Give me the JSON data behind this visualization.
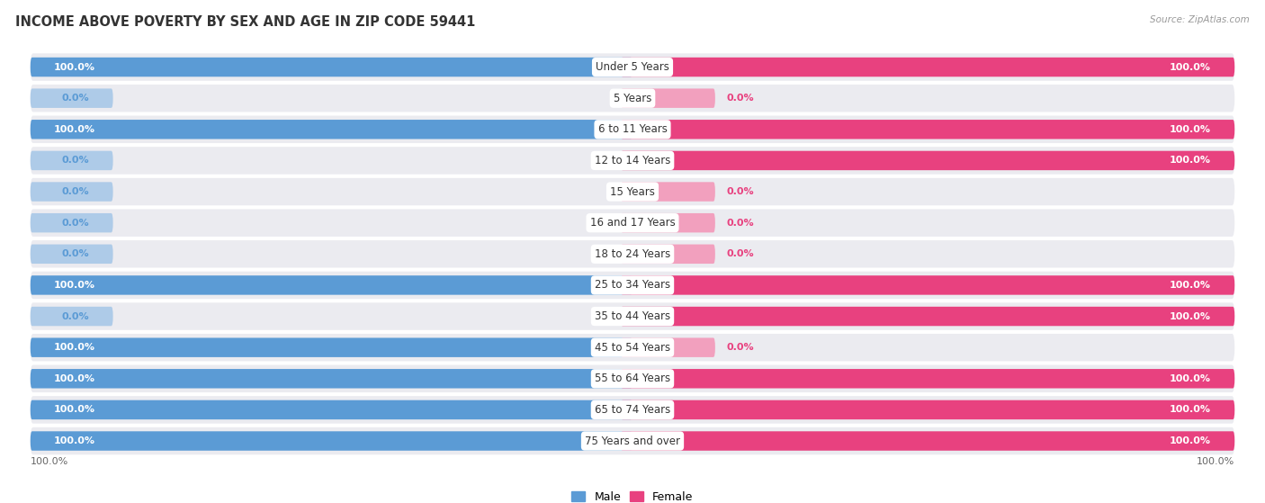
{
  "title": "INCOME ABOVE POVERTY BY SEX AND AGE IN ZIP CODE 59441",
  "source": "Source: ZipAtlas.com",
  "categories": [
    "Under 5 Years",
    "5 Years",
    "6 to 11 Years",
    "12 to 14 Years",
    "15 Years",
    "16 and 17 Years",
    "18 to 24 Years",
    "25 to 34 Years",
    "35 to 44 Years",
    "45 to 54 Years",
    "55 to 64 Years",
    "65 to 74 Years",
    "75 Years and over"
  ],
  "male": [
    100.0,
    0.0,
    100.0,
    0.0,
    0.0,
    0.0,
    0.0,
    100.0,
    0.0,
    100.0,
    100.0,
    100.0,
    100.0
  ],
  "female": [
    100.0,
    0.0,
    100.0,
    100.0,
    0.0,
    0.0,
    0.0,
    100.0,
    100.0,
    0.0,
    100.0,
    100.0,
    100.0
  ],
  "male_color": "#5b9bd5",
  "male_light_color": "#aecbe8",
  "female_color": "#e8417f",
  "female_light_color": "#f2a0be",
  "bg_color": "#ebebf0",
  "title_fontsize": 10.5,
  "label_fontsize": 8.5,
  "value_fontsize": 8.0
}
